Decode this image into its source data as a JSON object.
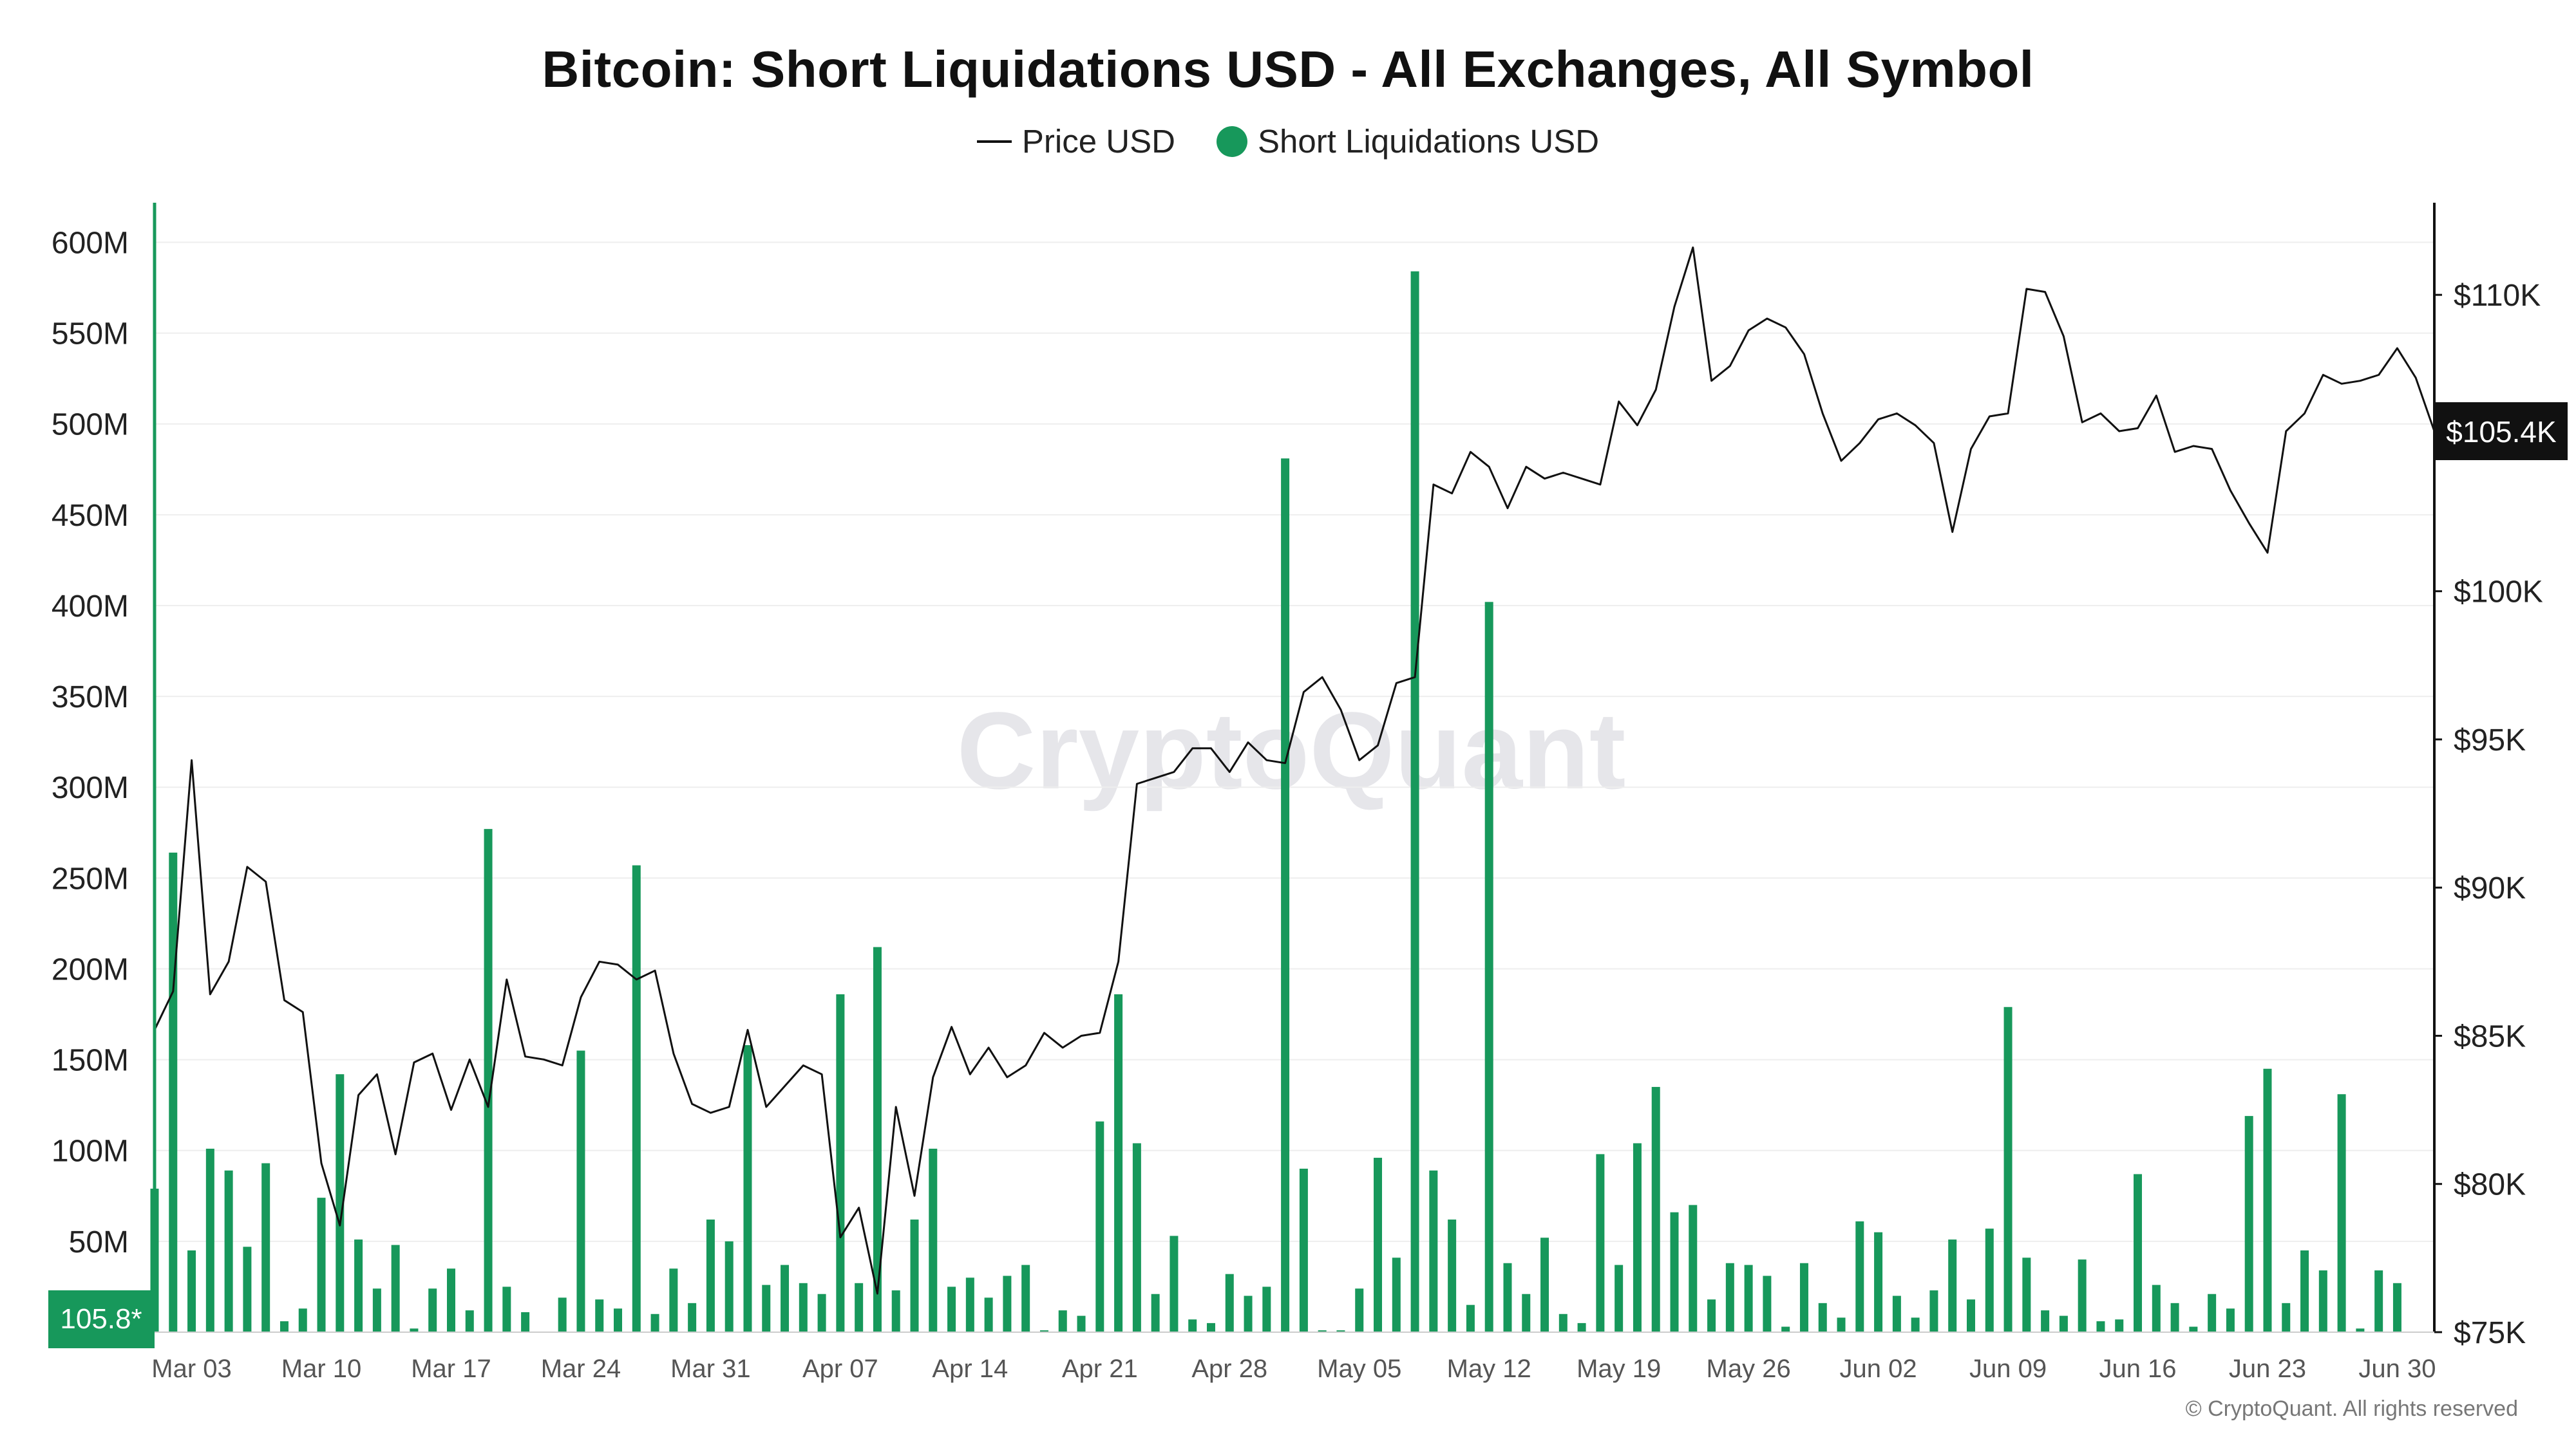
{
  "chart_data": {
    "type": "bar",
    "title": "Bitcoin: Short Liquidations USD - All Exchanges, All Symbol",
    "legend": [
      "Price USD",
      "Short Liquidations USD"
    ],
    "legend_position": "top-center",
    "watermark": "CryptoQuant",
    "copyright": "© CryptoQuant. All rights reserved",
    "grid": true,
    "colors": {
      "bars": "#17985B",
      "price_line": "#111111",
      "left_axis": "#17985B"
    },
    "x_range": [
      "2025-03-01",
      "2025-07-02"
    ],
    "x_ticks": [
      {
        "date": "2025-03-03",
        "label": "Mar 03"
      },
      {
        "date": "2025-03-10",
        "label": "Mar 10"
      },
      {
        "date": "2025-03-17",
        "label": "Mar 17"
      },
      {
        "date": "2025-03-24",
        "label": "Mar 24"
      },
      {
        "date": "2025-03-31",
        "label": "Mar 31"
      },
      {
        "date": "2025-04-07",
        "label": "Apr 07"
      },
      {
        "date": "2025-04-14",
        "label": "Apr 14"
      },
      {
        "date": "2025-04-21",
        "label": "Apr 21"
      },
      {
        "date": "2025-04-28",
        "label": "Apr 28"
      },
      {
        "date": "2025-05-05",
        "label": "May 05"
      },
      {
        "date": "2025-05-12",
        "label": "May 12"
      },
      {
        "date": "2025-05-19",
        "label": "May 19"
      },
      {
        "date": "2025-05-26",
        "label": "May 26"
      },
      {
        "date": "2025-06-02",
        "label": "Jun 02"
      },
      {
        "date": "2025-06-09",
        "label": "Jun 09"
      },
      {
        "date": "2025-06-16",
        "label": "Jun 16"
      },
      {
        "date": "2025-06-23",
        "label": "Jun 23"
      },
      {
        "date": "2025-06-30",
        "label": "Jun 30"
      }
    ],
    "y_left": {
      "ylim": [
        0,
        620000000
      ],
      "ticks": [
        {
          "value": 50000000,
          "label": "50M"
        },
        {
          "value": 100000000,
          "label": "100M"
        },
        {
          "value": 150000000,
          "label": "150M"
        },
        {
          "value": 200000000,
          "label": "200M"
        },
        {
          "value": 250000000,
          "label": "250M"
        },
        {
          "value": 300000000,
          "label": "300M"
        },
        {
          "value": 350000000,
          "label": "350M"
        },
        {
          "value": 400000000,
          "label": "400M"
        },
        {
          "value": 450000000,
          "label": "450M"
        },
        {
          "value": 500000000,
          "label": "500M"
        },
        {
          "value": 550000000,
          "label": "550M"
        },
        {
          "value": 600000000,
          "label": "600M"
        }
      ],
      "current_label": "105.8*"
    },
    "y_right": {
      "ylim": [
        75000,
        113000
      ],
      "ticks": [
        {
          "value": 75000,
          "label": "$75K"
        },
        {
          "value": 80000,
          "label": "$80K"
        },
        {
          "value": 85000,
          "label": "$85K"
        },
        {
          "value": 90000,
          "label": "$90K"
        },
        {
          "value": 95000,
          "label": "$95K"
        },
        {
          "value": 100000,
          "label": "$100K"
        },
        {
          "value": 110000,
          "label": "$110K"
        }
      ],
      "current_label": "$105.4K"
    },
    "series": [
      {
        "name": "Short Liquidations USD",
        "type": "bar",
        "axis": "left",
        "start_date": "2025-03-01",
        "values": [
          79000000,
          264000000,
          45000000,
          101000000,
          89000000,
          47000000,
          93000000,
          6000000,
          13000000,
          74000000,
          142000000,
          51000000,
          24000000,
          48000000,
          2000000,
          24000000,
          35000000,
          12000000,
          277000000,
          25000000,
          11000000,
          0,
          19000000,
          155000000,
          18000000,
          13000000,
          257000000,
          10000000,
          35000000,
          16000000,
          62000000,
          50000000,
          158000000,
          26000000,
          37000000,
          27000000,
          21000000,
          186000000,
          27000000,
          212000000,
          23000000,
          62000000,
          101000000,
          25000000,
          30000000,
          19000000,
          31000000,
          37000000,
          1000000,
          12000000,
          9000000,
          116000000,
          186000000,
          104000000,
          21000000,
          53000000,
          7000000,
          5000000,
          32000000,
          20000000,
          25000000,
          481000000,
          90000000,
          1000000,
          1000000,
          24000000,
          96000000,
          41000000,
          584000000,
          89000000,
          62000000,
          15000000,
          402000000,
          38000000,
          21000000,
          52000000,
          10000000,
          5000000,
          98000000,
          37000000,
          104000000,
          135000000,
          66000000,
          70000000,
          18000000,
          38000000,
          37000000,
          31000000,
          3000000,
          38000000,
          16000000,
          8000000,
          61000000,
          55000000,
          20000000,
          8000000,
          23000000,
          51000000,
          18000000,
          57000000,
          179000000,
          41000000,
          12000000,
          9000000,
          40000000,
          6000000,
          7000000,
          87000000,
          26000000,
          16000000,
          3000000,
          21000000,
          13000000,
          119000000,
          145000000,
          16000000,
          45000000,
          34000000,
          131000000,
          2000000,
          34000000,
          27000000
        ]
      },
      {
        "name": "Price USD",
        "type": "line",
        "axis": "right",
        "start_date": "2025-03-01",
        "values": [
          85200,
          86500,
          94300,
          86400,
          87500,
          90700,
          90200,
          86200,
          85800,
          80700,
          78600,
          83000,
          83700,
          81000,
          84100,
          84400,
          82500,
          84200,
          82600,
          86900,
          84300,
          84200,
          84000,
          86300,
          87500,
          87400,
          86900,
          87200,
          84400,
          82700,
          82400,
          82600,
          85200,
          82600,
          83300,
          84000,
          83700,
          78200,
          79200,
          76300,
          82600,
          79600,
          83600,
          85300,
          83700,
          84600,
          83600,
          84000,
          85100,
          84600,
          85000,
          85100,
          87500,
          93500,
          93700,
          93900,
          94700,
          94700,
          93900,
          94900,
          94300,
          94200,
          96600,
          97100,
          96000,
          94300,
          94800,
          96900,
          97100,
          103600,
          103300,
          104700,
          104200,
          102800,
          104200,
          103800,
          104000,
          103800,
          103600,
          106400,
          105600,
          106800,
          109600,
          111600,
          107100,
          107600,
          108800,
          109200,
          108900,
          108000,
          106000,
          104400,
          105000,
          105800,
          106000,
          105600,
          105000,
          102000,
          104800,
          105900,
          106000,
          110200,
          110100,
          108600,
          105700,
          106000,
          105400,
          105500,
          106600,
          104700,
          104900,
          104800,
          103400,
          102300,
          101300,
          105400,
          106000,
          107300,
          107000,
          107100,
          107300,
          108200,
          107200,
          105400
        ]
      }
    ]
  }
}
